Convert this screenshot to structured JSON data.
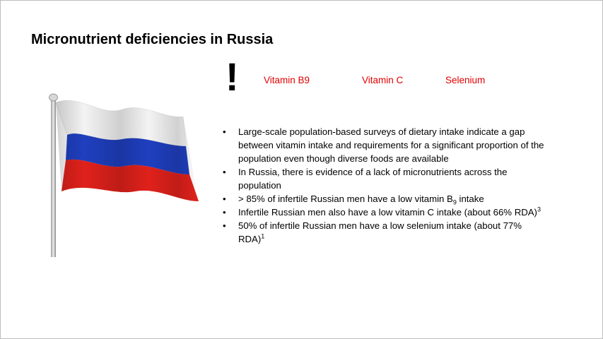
{
  "slide": {
    "title": "Micronutrient deficiencies in Russia",
    "exclamation": "!",
    "nutrients": [
      "Vitamin B9",
      "Vitamin C",
      "Selenium"
    ],
    "flag": {
      "icon": "russian-flag-on-pole",
      "colors": {
        "white": "#f4f4f4",
        "blue": "#1f3fbf",
        "red": "#e0211b",
        "pole": "#c8c8c8"
      }
    },
    "bullets": [
      {
        "text": "Large-scale population-based surveys of dietary intake indicate a gap between vitamin intake and requirements for a significant proportion of the population even though diverse foods are available"
      },
      {
        "text": "In Russia, there is evidence of a lack of micronutrients across the population"
      },
      {
        "before": "> 85% of infertile Russian men have a low vitamin B",
        "sub": "9",
        "after": " intake"
      },
      {
        "before": "Infertile Russian men also have a low vitamin C intake (about 66% RDA)",
        "sup": "3"
      },
      {
        "before": "50% of infertile Russian men have a low selenium intake (about 77% RDA)",
        "sup": "1"
      }
    ]
  }
}
